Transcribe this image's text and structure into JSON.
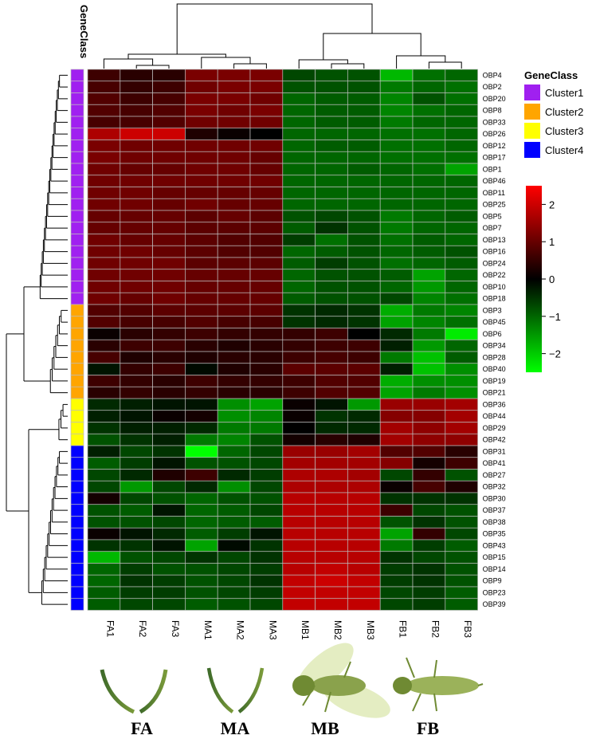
{
  "chart_data": {
    "type": "heatmap",
    "annotation_title": "GeneClass",
    "columns": [
      "FA1",
      "FA2",
      "FA3",
      "MA1",
      "MA2",
      "MA3",
      "MB1",
      "MB2",
      "MB3",
      "FB1",
      "FB2",
      "FB3"
    ],
    "rows": [
      "OBP4",
      "OBP2",
      "OBP20",
      "OBP8",
      "OBP33",
      "OBP26",
      "OBP12",
      "OBP17",
      "OBP1",
      "OBP46",
      "OBP11",
      "OBP25",
      "OBP5",
      "OBP7",
      "OBP13",
      "OBP16",
      "OBP24",
      "OBP22",
      "OBP10",
      "OBP18",
      "OBP3",
      "OBP45",
      "OBP6",
      "OBP34",
      "OBP28",
      "OBP40",
      "OBP19",
      "OBP21",
      "OBP36",
      "OBP44",
      "OBP29",
      "OBP42",
      "OBP31",
      "OBP41",
      "OBP27",
      "OBP32",
      "OBP30",
      "OBP37",
      "OBP38",
      "OBP35",
      "OBP43",
      "OBP15",
      "OBP14",
      "OBP9",
      "OBP23",
      "OBP39"
    ],
    "row_class": [
      1,
      1,
      1,
      1,
      1,
      1,
      1,
      1,
      1,
      1,
      1,
      1,
      1,
      1,
      1,
      1,
      1,
      1,
      1,
      1,
      2,
      2,
      2,
      2,
      2,
      2,
      2,
      2,
      3,
      3,
      3,
      3,
      4,
      4,
      4,
      4,
      4,
      4,
      4,
      4,
      4,
      4,
      4,
      4,
      4,
      4
    ],
    "classes": [
      {
        "name": "Cluster1",
        "color": "#a020f0"
      },
      {
        "name": "Cluster2",
        "color": "#ffa500"
      },
      {
        "name": "Cluster3",
        "color": "#ffff00"
      },
      {
        "name": "Cluster4",
        "color": "#0000ff"
      }
    ],
    "color_scale": {
      "min": -2.5,
      "max": 2.5,
      "low": "#00ff00",
      "mid": "#000000",
      "high": "#ff0000",
      "ticks": [
        2,
        1,
        0,
        -1,
        -2
      ],
      "tick_labels": [
        "2",
        "1",
        "0",
        "−1",
        "−2"
      ]
    },
    "values": [
      [
        0.6,
        0.4,
        0.4,
        1.2,
        1.2,
        1.2,
        -0.7,
        -0.8,
        -0.8,
        -1.8,
        -1.1,
        -1.0
      ],
      [
        0.7,
        0.5,
        0.6,
        1.1,
        1.2,
        1.2,
        -0.8,
        -0.8,
        -0.8,
        -1.2,
        -1.0,
        -1.1
      ],
      [
        0.8,
        0.6,
        0.7,
        1.2,
        1.2,
        1.1,
        -1.0,
        -0.9,
        -0.9,
        -1.3,
        -0.8,
        -1.1
      ],
      [
        0.8,
        0.7,
        0.8,
        1.2,
        1.1,
        1.2,
        -1.0,
        -0.9,
        -0.9,
        -1.3,
        -1.1,
        -1.0
      ],
      [
        0.7,
        0.7,
        0.8,
        1.1,
        1.1,
        1.1,
        -1.0,
        -0.9,
        -0.9,
        -1.2,
        -1.0,
        -1.0
      ],
      [
        1.7,
        2.0,
        2.0,
        0.3,
        0.1,
        0.0,
        -1.0,
        -1.0,
        -1.0,
        -1.1,
        -1.1,
        -1.0
      ],
      [
        1.2,
        1.1,
        1.1,
        1.1,
        1.1,
        1.1,
        -1.0,
        -0.9,
        -0.9,
        -1.1,
        -1.1,
        -1.0
      ],
      [
        1.2,
        1.1,
        1.1,
        1.1,
        1.1,
        1.0,
        -1.0,
        -1.0,
        -1.0,
        -1.1,
        -1.1,
        -1.1
      ],
      [
        1.1,
        1.0,
        1.0,
        1.1,
        1.1,
        1.0,
        -1.0,
        -1.0,
        -0.9,
        -1.0,
        -1.1,
        -1.6
      ],
      [
        1.1,
        1.1,
        1.1,
        1.1,
        1.1,
        1.1,
        -1.0,
        -1.0,
        -1.0,
        -1.0,
        -1.0,
        -1.0
      ],
      [
        1.1,
        1.1,
        1.0,
        1.0,
        1.0,
        1.0,
        -1.0,
        -1.0,
        -1.0,
        -1.0,
        -1.0,
        -1.0
      ],
      [
        1.1,
        1.1,
        1.0,
        1.1,
        1.0,
        1.0,
        -1.0,
        -1.0,
        -1.0,
        -1.0,
        -1.0,
        -1.0
      ],
      [
        1.0,
        1.0,
        1.0,
        0.9,
        1.0,
        0.9,
        -0.8,
        -0.7,
        -0.8,
        -1.2,
        -1.0,
        -0.9
      ],
      [
        1.0,
        1.0,
        1.0,
        0.9,
        0.9,
        0.9,
        -0.9,
        -0.5,
        -0.8,
        -1.2,
        -1.0,
        -1.0
      ],
      [
        1.1,
        1.0,
        1.0,
        0.9,
        0.8,
        0.8,
        -0.6,
        -1.1,
        -0.8,
        -1.1,
        -0.9,
        -1.0
      ],
      [
        1.1,
        1.1,
        1.0,
        0.9,
        0.8,
        0.8,
        -1.0,
        -0.9,
        -0.8,
        -1.0,
        -0.9,
        -0.8
      ],
      [
        1.1,
        1.1,
        1.1,
        0.9,
        0.9,
        0.9,
        -0.9,
        -0.6,
        -0.8,
        -1.1,
        -1.0,
        -0.9
      ],
      [
        1.1,
        1.1,
        1.1,
        1.0,
        1.0,
        1.0,
        -1.0,
        -0.8,
        -0.8,
        -0.9,
        -1.6,
        -1.0
      ],
      [
        1.1,
        1.1,
        1.1,
        1.0,
        1.0,
        1.0,
        -1.0,
        -0.8,
        -0.8,
        -1.0,
        -1.5,
        -1.0
      ],
      [
        1.1,
        1.0,
        1.1,
        1.0,
        1.0,
        1.0,
        -0.9,
        -0.8,
        -0.8,
        -0.7,
        -1.3,
        -1.1
      ],
      [
        0.8,
        0.8,
        0.9,
        0.9,
        0.9,
        0.9,
        -0.5,
        -0.4,
        -0.5,
        -1.7,
        -1.2,
        -1.3
      ],
      [
        0.8,
        0.7,
        0.7,
        0.8,
        0.7,
        0.7,
        -0.5,
        -0.4,
        -0.5,
        -1.6,
        -1.3,
        -1.1
      ],
      [
        0.1,
        0.4,
        0.5,
        0.6,
        0.5,
        0.5,
        0.5,
        0.6,
        0.0,
        -0.4,
        -1.2,
        -2.3
      ],
      [
        0.4,
        0.6,
        0.6,
        0.4,
        0.3,
        0.4,
        0.5,
        0.6,
        0.6,
        -0.3,
        -1.5,
        -1.0
      ],
      [
        0.7,
        0.3,
        0.4,
        0.3,
        0.4,
        0.4,
        0.6,
        0.7,
        0.6,
        -1.2,
        -1.9,
        -0.9
      ],
      [
        -0.2,
        0.5,
        0.6,
        -0.1,
        0.3,
        0.4,
        0.9,
        0.9,
        0.9,
        -0.3,
        -1.9,
        -1.4
      ],
      [
        0.6,
        0.5,
        0.4,
        0.6,
        0.5,
        0.5,
        0.6,
        0.8,
        0.8,
        -1.7,
        -1.4,
        -1.4
      ],
      [
        0.4,
        0.5,
        0.4,
        0.5,
        0.4,
        0.4,
        0.6,
        0.8,
        0.8,
        -1.6,
        -1.2,
        -1.4
      ],
      [
        -0.4,
        -0.3,
        -0.2,
        -0.2,
        -1.4,
        -1.6,
        0.1,
        -0.2,
        -1.5,
        1.5,
        1.5,
        1.6
      ],
      [
        -0.3,
        -0.2,
        0.1,
        0.2,
        -1.4,
        -1.3,
        0.1,
        -0.5,
        -0.4,
        1.3,
        1.3,
        1.6
      ],
      [
        -0.5,
        -0.3,
        -0.3,
        -0.4,
        -1.2,
        -1.2,
        0.0,
        -0.4,
        -0.4,
        1.6,
        1.4,
        1.6
      ],
      [
        -0.8,
        -0.5,
        -0.3,
        -1.2,
        -1.3,
        -0.8,
        0.2,
        0.4,
        0.3,
        1.6,
        1.4,
        1.4
      ],
      [
        -0.3,
        -0.7,
        -0.5,
        -2.5,
        -1.0,
        -0.7,
        1.5,
        1.5,
        1.6,
        0.8,
        0.8,
        0.4
      ],
      [
        -0.9,
        -0.6,
        -0.2,
        -0.8,
        -0.8,
        -0.7,
        1.6,
        1.6,
        1.6,
        1.3,
        0.2,
        0.6
      ],
      [
        -0.7,
        -0.4,
        0.3,
        0.6,
        -0.4,
        -0.6,
        1.7,
        1.7,
        1.6,
        -0.7,
        0.5,
        -0.8
      ],
      [
        -0.7,
        -1.5,
        -0.7,
        -0.4,
        -1.4,
        -0.7,
        1.7,
        1.7,
        1.7,
        0.1,
        0.7,
        0.3
      ],
      [
        0.2,
        -0.7,
        -0.8,
        -1.0,
        -0.8,
        -0.8,
        1.8,
        1.8,
        1.8,
        -0.5,
        -0.5,
        -0.5
      ],
      [
        -0.8,
        -0.9,
        -0.2,
        -1.0,
        -0.9,
        -0.7,
        1.8,
        1.8,
        1.8,
        0.6,
        -0.7,
        -0.8
      ],
      [
        -0.8,
        -0.8,
        -0.7,
        -1.0,
        -0.9,
        -0.9,
        1.8,
        1.8,
        1.8,
        -0.8,
        -0.5,
        -0.8
      ],
      [
        0.1,
        -0.2,
        -0.4,
        -0.9,
        -0.6,
        -0.2,
        1.8,
        1.8,
        1.8,
        -1.6,
        0.5,
        -0.7
      ],
      [
        -0.5,
        -0.5,
        -0.2,
        -1.6,
        -0.1,
        -0.5,
        1.8,
        1.8,
        1.8,
        -1.2,
        -0.6,
        -0.9
      ],
      [
        -1.8,
        -0.8,
        -0.7,
        -0.5,
        -0.7,
        -0.5,
        1.8,
        1.8,
        1.8,
        -0.5,
        -0.7,
        -0.8
      ],
      [
        -1.0,
        -0.6,
        -0.8,
        -0.8,
        -0.7,
        -0.6,
        1.8,
        1.9,
        1.8,
        -0.6,
        -0.5,
        -0.8
      ],
      [
        -1.0,
        -0.5,
        -0.6,
        -0.8,
        -0.7,
        -0.5,
        1.9,
        2.0,
        1.9,
        -0.6,
        -0.5,
        -0.8
      ],
      [
        -0.9,
        -0.6,
        -0.6,
        -0.8,
        -0.7,
        -0.6,
        1.9,
        1.9,
        1.9,
        -0.7,
        -0.6,
        -0.9
      ],
      [
        -0.9,
        -0.7,
        -0.7,
        -0.9,
        -0.8,
        -0.7,
        1.9,
        1.9,
        1.9,
        -0.7,
        -0.6,
        -0.9
      ]
    ],
    "group_labels": [
      "FA",
      "MA",
      "MB",
      "FB"
    ]
  }
}
